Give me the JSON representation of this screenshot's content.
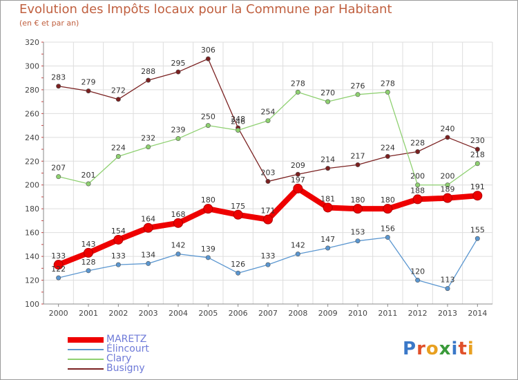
{
  "title": "Evolution des Impôts locaux pour la Commune par Habitant",
  "subtitle": "(en € et par an)",
  "logo": {
    "letters": [
      "P",
      "r",
      "o",
      "x",
      "i",
      "t",
      "i"
    ],
    "colors": [
      "#3a78c8",
      "#e0502a",
      "#e8a020",
      "#3a9a3a",
      "#3a78c8",
      "#e0502a",
      "#e8a020"
    ]
  },
  "chart_data": {
    "type": "line",
    "title": "Evolution des Impôts locaux pour la Commune par Habitant",
    "subtitle": "(en € et par an)",
    "x": [
      "2000",
      "2001",
      "2002",
      "2003",
      "2004",
      "2005",
      "2006",
      "2007",
      "2008",
      "2009",
      "2010",
      "2011",
      "2012",
      "2013",
      "2014"
    ],
    "ylim": [
      100,
      320
    ],
    "yticks": [
      100,
      120,
      140,
      160,
      180,
      200,
      220,
      240,
      260,
      280,
      300,
      320
    ],
    "grid": true,
    "legend_position": "bottom-left",
    "series": [
      {
        "name": "MARETZ",
        "color": "#ee0000",
        "values": [
          133,
          143,
          154,
          164,
          168,
          180,
          175,
          171,
          197,
          181,
          180,
          180,
          188,
          189,
          191
        ]
      },
      {
        "name": "Élincourt",
        "color": "#5a96d0",
        "values": [
          122,
          128,
          133,
          134,
          142,
          139,
          126,
          133,
          142,
          147,
          153,
          156,
          120,
          113,
          155
        ]
      },
      {
        "name": "Clary",
        "color": "#8ed070",
        "values": [
          207,
          201,
          224,
          232,
          239,
          250,
          246,
          254,
          278,
          270,
          276,
          278,
          200,
          200,
          218
        ]
      },
      {
        "name": "Busigny",
        "color": "#7a2020",
        "values": [
          283,
          279,
          272,
          288,
          295,
          306,
          248,
          203,
          209,
          214,
          217,
          224,
          228,
          240,
          230
        ]
      }
    ]
  }
}
